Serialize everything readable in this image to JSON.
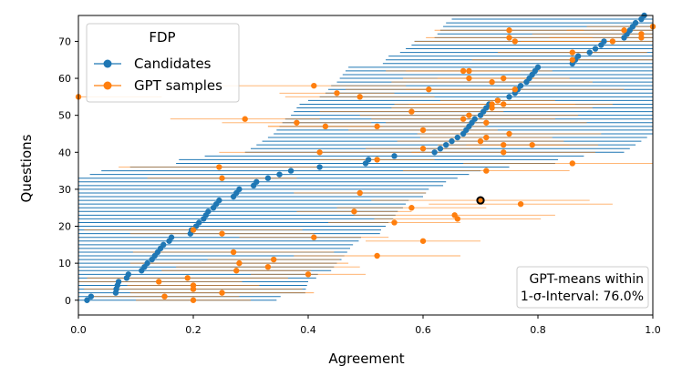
{
  "chart_data": {
    "type": "scatter",
    "xlabel": "Agreement",
    "ylabel": "Questions",
    "xlim": [
      0.0,
      1.0
    ],
    "ylim": [
      -4,
      77
    ],
    "xticks": [
      "0.0",
      "0.2",
      "0.4",
      "0.6",
      "0.8",
      "1.0"
    ],
    "yticks": [
      "0",
      "10",
      "20",
      "30",
      "40",
      "50",
      "60",
      "70"
    ],
    "legend": {
      "title": "FDP",
      "placement": "top-left",
      "entries": [
        "Candidates",
        "GPT samples"
      ]
    },
    "annotation": {
      "line1": "GPT-means within",
      "line2": "1-σ-Interval: 76.0%"
    },
    "colors": {
      "candidates": "#1f77b4",
      "gpt": "#ff7f0e"
    },
    "highlight": {
      "x": 0.7,
      "y": 27
    },
    "series": [
      {
        "name": "Candidates",
        "x": [
          0.015,
          0.022,
          0.065,
          0.066,
          0.068,
          0.07,
          0.084,
          0.087,
          0.11,
          0.115,
          0.12,
          0.128,
          0.133,
          0.138,
          0.143,
          0.148,
          0.158,
          0.162,
          0.195,
          0.197,
          0.205,
          0.21,
          0.218,
          0.222,
          0.226,
          0.235,
          0.24,
          0.245,
          0.27,
          0.275,
          0.28,
          0.305,
          0.31,
          0.33,
          0.35,
          0.37,
          0.42,
          0.5,
          0.505,
          0.55,
          0.62,
          0.63,
          0.64,
          0.65,
          0.66,
          0.67,
          0.675,
          0.68,
          0.685,
          0.69,
          0.7,
          0.705,
          0.71,
          0.715,
          0.73,
          0.75,
          0.76,
          0.765,
          0.77,
          0.78,
          0.785,
          0.79,
          0.795,
          0.8,
          0.86,
          0.865,
          0.87,
          0.89,
          0.9,
          0.91,
          0.915,
          0.95,
          0.955,
          0.96,
          0.965,
          0.97,
          0.98,
          0.985
        ],
        "y": [
          0,
          1,
          2,
          3,
          4,
          5,
          6,
          7,
          8,
          9,
          10,
          11,
          12,
          13,
          14,
          15,
          16,
          17,
          18,
          19,
          20,
          21,
          22,
          23,
          24,
          25,
          26,
          27,
          28,
          29,
          30,
          31,
          32,
          33,
          34,
          35,
          36,
          37,
          38,
          39,
          40,
          41,
          42,
          43,
          44,
          45,
          46,
          47,
          48,
          49,
          50,
          51,
          52,
          53,
          54,
          55,
          56,
          57,
          58,
          59,
          60,
          61,
          62,
          63,
          64,
          65,
          66,
          67,
          68,
          69,
          70,
          71,
          72,
          73,
          74,
          75,
          76,
          77
        ],
        "err": 0.33
      },
      {
        "name": "GPT samples",
        "x": [
          0.2,
          0.15,
          0.25,
          0.2,
          0.2,
          0.14,
          0.19,
          0.4,
          0.275,
          0.33,
          0.28,
          0.34,
          0.52,
          0.27,
          0.6,
          0.41,
          0.25,
          0.2,
          0.55,
          0.66,
          0.655,
          0.48,
          0.58,
          0.77,
          0.7,
          0.49,
          0.71,
          0.245,
          0.52,
          0.25,
          0.74,
          0.86,
          0.74,
          0.7,
          0.42,
          0.6,
          0.6,
          0.75,
          0.52,
          0.71,
          0.0,
          0.71,
          0.43,
          0.38,
          0.67,
          0.68,
          0.79,
          0.72,
          0.72,
          0.73,
          0.29,
          0.58,
          0.74,
          0.68,
          0.61,
          0.72,
          0.45,
          0.49,
          0.41,
          0.76,
          0.74,
          0.68,
          0.86,
          0.67,
          0.86,
          0.93,
          0.98,
          1.0,
          0.75,
          0.76,
          0.95,
          0.75,
          0.98
        ],
        "y": [
          0,
          1,
          2,
          3,
          4,
          5,
          6,
          7,
          8,
          9,
          10,
          11,
          12,
          13,
          16,
          17,
          18,
          19,
          21,
          22,
          23,
          24,
          25,
          26,
          27,
          29,
          35,
          36,
          38,
          33,
          40,
          37,
          42,
          43,
          40,
          41,
          46,
          45,
          47,
          44,
          55,
          48,
          47,
          48,
          49,
          50,
          42,
          53,
          52,
          54,
          49,
          51,
          53,
          60,
          57,
          59,
          56,
          55,
          58,
          57,
          60,
          62,
          65,
          62,
          67,
          70,
          72,
          74,
          71,
          70,
          73,
          73,
          71
        ]
      }
    ]
  }
}
